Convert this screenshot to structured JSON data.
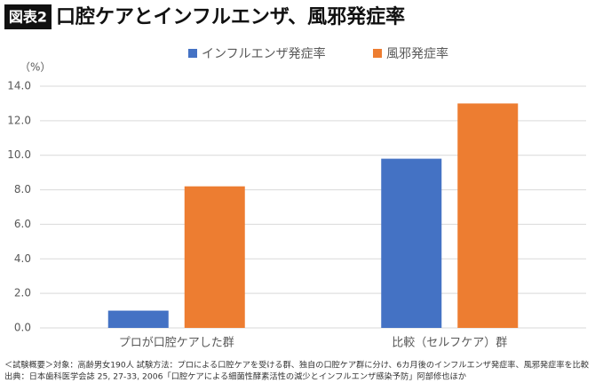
{
  "badge": "図表2",
  "chart_data": {
    "type": "bar",
    "title": "口腔ケアとインフルエンザ、風邪発症率",
    "y_unit": "（%）",
    "categories": [
      "プロが口腔ケアした群",
      "比較（セルフケア）群"
    ],
    "series": [
      {
        "name": "インフルエンザ発症率",
        "color": "#4472c4",
        "values": [
          1.0,
          9.8
        ]
      },
      {
        "name": "風邪発症率",
        "color": "#ed7d31",
        "values": [
          8.2,
          13.0
        ]
      }
    ],
    "ylim": [
      0,
      14
    ],
    "yticks": [
      {
        "value": 0,
        "label": "0.0"
      },
      {
        "value": 2,
        "label": "2.0"
      },
      {
        "value": 4,
        "label": "4.0"
      },
      {
        "value": 6,
        "label": "6.0"
      },
      {
        "value": 8,
        "label": "8.0"
      },
      {
        "value": 10,
        "label": "10.0"
      },
      {
        "value": 12,
        "label": "12.0"
      },
      {
        "value": 14,
        "label": "14.0"
      }
    ],
    "grid": true
  },
  "notes": [
    "＜試験概要＞対象：高齢男女190人 試験方法：プロによる口腔ケアを受ける群、独自の口腔ケア群に分け、6カ月後のインフルエンザ発症率、風邪発症率を比較",
    "出典：日本歯科医学会誌 25, 27-33, 2006「口腔ケアによる細菌性酵素活性の減少とインフルエンザ感染予防」阿部修也ほか"
  ]
}
